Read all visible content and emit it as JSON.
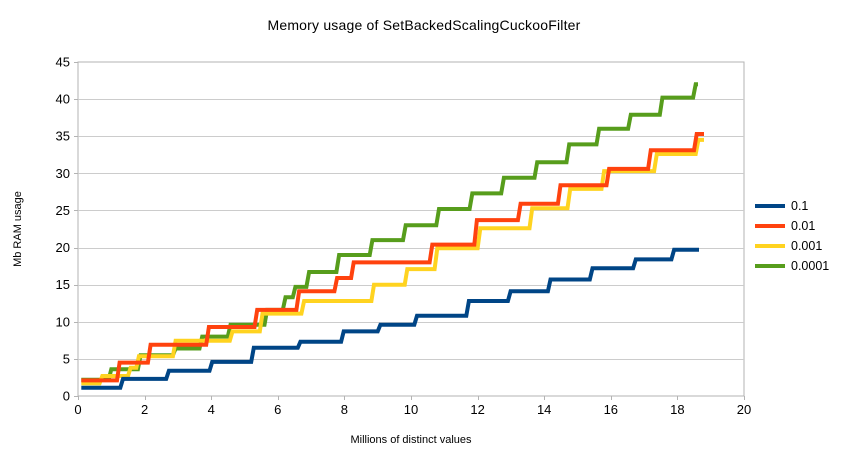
{
  "title": "Memory usage of SetBackedScalingCuckooFilter",
  "axes": {
    "x_title": "Millions of distinct values",
    "y_title": "Mb RAM usage",
    "x_ticks": [
      0,
      2,
      4,
      6,
      8,
      10,
      12,
      14,
      16,
      18,
      20
    ],
    "y_ticks": [
      0,
      5,
      10,
      15,
      20,
      25,
      30,
      35,
      40,
      45
    ],
    "grid_color": "#cccccc",
    "axis_color": "#b3b3b3",
    "text_color": "#000000"
  },
  "legend": {
    "position": "right",
    "items": [
      {
        "label": "0.1",
        "color": "#004586"
      },
      {
        "label": "0.01",
        "color": "#ff420e"
      },
      {
        "label": "0.001",
        "color": "#ffd320"
      },
      {
        "label": "0.0001",
        "color": "#579d1c"
      }
    ]
  },
  "chart_data": {
    "type": "line",
    "subtype": "step",
    "title": "Memory usage of SetBackedScalingCuckooFilter",
    "xlabel": "Millions of distinct values",
    "ylabel": "Mb RAM usage",
    "xlim": [
      0,
      20
    ],
    "ylim": [
      0,
      45
    ],
    "grid": true,
    "legend_position": "right",
    "series": [
      {
        "name": "0.1",
        "color": "#004586",
        "start_x": 0.1,
        "end_x": 18.65,
        "steps": [
          [
            0.1,
            1.1
          ],
          [
            1.27,
            2.3
          ],
          [
            2.65,
            3.4
          ],
          [
            3.95,
            4.6
          ],
          [
            5.2,
            6.5
          ],
          [
            6.6,
            7.3
          ],
          [
            7.9,
            8.7
          ],
          [
            9.0,
            9.6
          ],
          [
            10.1,
            10.8
          ],
          [
            11.66,
            12.8
          ],
          [
            12.91,
            14.1
          ],
          [
            14.11,
            15.7
          ],
          [
            15.37,
            17.2
          ],
          [
            16.67,
            18.4
          ],
          [
            17.82,
            19.7
          ]
        ]
      },
      {
        "name": "0.01",
        "color": "#ff420e",
        "start_x": 0.1,
        "end_x": 18.8,
        "steps": [
          [
            0.1,
            2.1
          ],
          [
            1.17,
            4.5
          ],
          [
            2.1,
            6.9
          ],
          [
            3.85,
            9.3
          ],
          [
            5.3,
            11.6
          ],
          [
            6.56,
            14.1
          ],
          [
            7.7,
            15.9
          ],
          [
            8.2,
            18.0
          ],
          [
            10.56,
            20.4
          ],
          [
            11.9,
            23.7
          ],
          [
            13.21,
            25.9
          ],
          [
            14.41,
            28.4
          ],
          [
            15.87,
            30.6
          ],
          [
            17.12,
            33.1
          ],
          [
            18.5,
            35.3
          ]
        ]
      },
      {
        "name": "0.001",
        "color": "#ffd320",
        "start_x": 0.1,
        "end_x": 18.8,
        "steps": [
          [
            0.1,
            1.7
          ],
          [
            0.65,
            2.7
          ],
          [
            1.5,
            3.8
          ],
          [
            1.75,
            5.35
          ],
          [
            2.85,
            7.45
          ],
          [
            4.56,
            8.7
          ],
          [
            5.46,
            11.1
          ],
          [
            6.71,
            12.8
          ],
          [
            8.81,
            15.0
          ],
          [
            9.81,
            17.1
          ],
          [
            10.71,
            19.9
          ],
          [
            12.0,
            22.6
          ],
          [
            13.56,
            25.3
          ],
          [
            14.7,
            27.9
          ],
          [
            15.72,
            30.3
          ],
          [
            17.3,
            32.6
          ],
          [
            18.55,
            34.5
          ]
        ]
      },
      {
        "name": "0.0001",
        "color": "#579d1c",
        "start_x": 0.1,
        "end_x": 18.62,
        "steps": [
          [
            0.1,
            2.2
          ],
          [
            0.92,
            3.6
          ],
          [
            1.8,
            5.5
          ],
          [
            2.85,
            6.4
          ],
          [
            3.65,
            8.0
          ],
          [
            4.5,
            9.6
          ],
          [
            5.6,
            11.6
          ],
          [
            6.15,
            13.3
          ],
          [
            6.45,
            14.7
          ],
          [
            6.86,
            16.7
          ],
          [
            7.76,
            19.0
          ],
          [
            8.76,
            21.0
          ],
          [
            9.76,
            23.0
          ],
          [
            10.76,
            25.2
          ],
          [
            11.76,
            27.3
          ],
          [
            12.71,
            29.4
          ],
          [
            13.71,
            31.5
          ],
          [
            14.67,
            33.9
          ],
          [
            15.57,
            36.0
          ],
          [
            16.52,
            37.9
          ],
          [
            17.47,
            40.2
          ],
          [
            18.47,
            42.0
          ]
        ]
      }
    ]
  }
}
